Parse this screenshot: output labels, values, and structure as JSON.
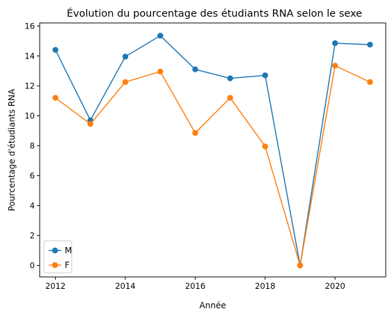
{
  "chart_data": {
    "type": "line",
    "title": "Évolution du pourcentage des étudiants RNA selon le sexe",
    "xlabel": "Année",
    "ylabel": "Pourcentage d'étudiants RNA",
    "x": [
      2012,
      2013,
      2014,
      2015,
      2016,
      2017,
      2018,
      2019,
      2020,
      2021
    ],
    "xticks": [
      2012,
      2014,
      2016,
      2018,
      2020
    ],
    "yticks": [
      0,
      2,
      4,
      6,
      8,
      10,
      12,
      14,
      16
    ],
    "xlim": [
      2011.55,
      2021.45
    ],
    "ylim": [
      -0.77,
      16.2
    ],
    "grid": false,
    "legend_position": "lower-left",
    "series": [
      {
        "name": "M",
        "color": "#1f77b4",
        "values": [
          14.4,
          9.7,
          13.95,
          15.35,
          13.1,
          12.5,
          12.7,
          0.0,
          14.85,
          14.75
        ]
      },
      {
        "name": "F",
        "color": "#ff7f0e",
        "values": [
          11.2,
          9.45,
          12.25,
          12.95,
          8.85,
          11.2,
          7.95,
          0.0,
          13.35,
          12.25
        ]
      }
    ]
  }
}
